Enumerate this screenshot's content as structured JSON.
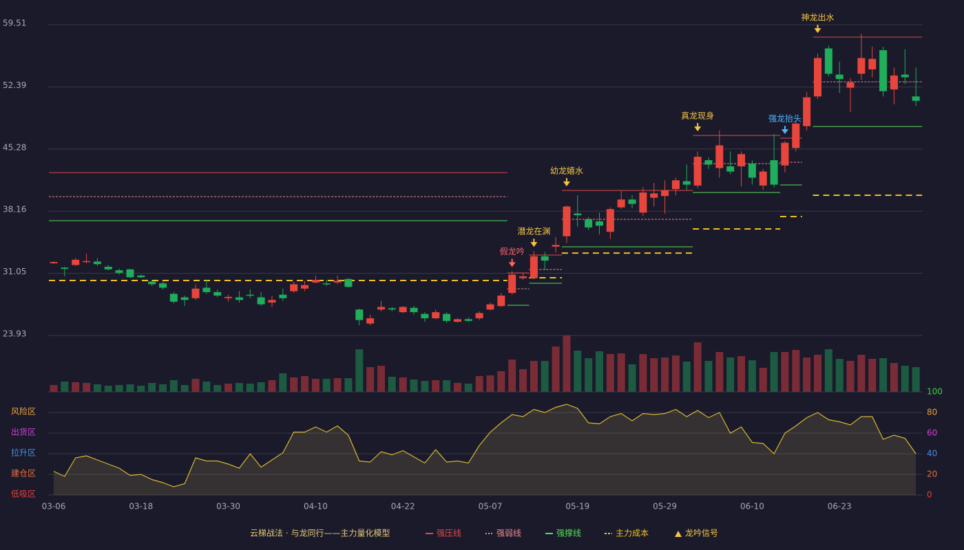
{
  "chart_data": {
    "type": "candlestick",
    "categories": [
      "03-06",
      null,
      null,
      null,
      null,
      null,
      null,
      null,
      "03-18",
      null,
      null,
      null,
      null,
      null,
      null,
      null,
      "03-30",
      null,
      null,
      null,
      null,
      null,
      null,
      null,
      "04-10",
      null,
      null,
      null,
      null,
      null,
      null,
      null,
      "04-22",
      null,
      null,
      null,
      null,
      null,
      null,
      null,
      "05-07",
      null,
      null,
      null,
      null,
      null,
      null,
      null,
      "05-19",
      null,
      null,
      null,
      null,
      null,
      null,
      null,
      "05-29",
      null,
      null,
      null,
      null,
      null,
      null,
      null,
      "06-10",
      null,
      null,
      null,
      null,
      null,
      null,
      null,
      "06-23",
      null,
      null,
      null,
      null,
      null,
      null,
      null
    ],
    "open": [
      32.2,
      31.7,
      32.0,
      32.4,
      32.4,
      31.8,
      31.4,
      31.5,
      30.8,
      30.1,
      29.9,
      28.7,
      28.3,
      28.2,
      29.4,
      28.9,
      28.2,
      28.3,
      28.6,
      28.3,
      27.7,
      28.6,
      29.0,
      29.3,
      30.0,
      29.9,
      30.0,
      30.4,
      26.9,
      25.3,
      26.9,
      27.05,
      26.6,
      27.1,
      26.4,
      25.9,
      26.4,
      25.5,
      25.8,
      25.9,
      26.9,
      27.3,
      28.8,
      30.5,
      30.5,
      33.0,
      34.1,
      35.3,
      37.9,
      37.2,
      37.0,
      35.8,
      38.6,
      39.5,
      38.0,
      39.7,
      39.9,
      40.7,
      41.6,
      41.1,
      44.0,
      43.1,
      43.3,
      43.3,
      43.6,
      41.1,
      44.0,
      43.4,
      45.4,
      47.9,
      51.3,
      56.8,
      53.8,
      52.3,
      53.9,
      54.4,
      56.6,
      52.1,
      53.8,
      51.3
    ],
    "close": [
      32.35,
      31.55,
      32.6,
      32.45,
      32.1,
      31.5,
      31.1,
      30.6,
      30.6,
      29.8,
      29.4,
      27.8,
      28.0,
      29.3,
      28.9,
      28.5,
      28.35,
      28.0,
      28.5,
      27.5,
      28.0,
      28.2,
      29.8,
      29.7,
      30.3,
      29.8,
      30.2,
      29.5,
      25.7,
      25.9,
      27.2,
      26.9,
      27.2,
      26.6,
      25.9,
      26.6,
      25.6,
      25.8,
      25.6,
      26.5,
      27.5,
      28.5,
      30.9,
      30.7,
      33.0,
      32.5,
      34.3,
      38.7,
      37.7,
      36.3,
      36.5,
      38.4,
      39.5,
      39.0,
      40.3,
      40.2,
      40.5,
      41.7,
      41.2,
      44.4,
      43.5,
      45.7,
      42.7,
      44.7,
      42.0,
      42.7,
      41.2,
      46.0,
      48.2,
      51.2,
      55.7,
      53.9,
      53.3,
      52.9,
      55.7,
      55.6,
      51.9,
      53.7,
      53.5,
      50.8
    ],
    "low": [
      32.1,
      30.7,
      31.9,
      32.2,
      31.9,
      31.4,
      30.9,
      30.5,
      30.5,
      29.6,
      29.2,
      27.6,
      27.3,
      28.0,
      28.7,
      28.3,
      27.8,
      27.7,
      28.2,
      27.3,
      27.2,
      27.9,
      28.8,
      29.0,
      29.9,
      29.6,
      29.8,
      29.4,
      25.1,
      25.1,
      26.7,
      26.7,
      26.5,
      26.3,
      25.5,
      25.8,
      25.4,
      25.4,
      25.5,
      25.7,
      26.8,
      27.2,
      28.6,
      30.3,
      30.4,
      31.4,
      33.4,
      34.5,
      36.4,
      36.0,
      35.5,
      35.0,
      38.4,
      38.5,
      37.6,
      38.7,
      37.9,
      40.0,
      40.6,
      40.8,
      43.0,
      42.0,
      42.4,
      41.0,
      41.2,
      40.6,
      40.9,
      42.6,
      45.0,
      47.4,
      51.0,
      53.6,
      51.7,
      49.5,
      53.2,
      53.5,
      51.3,
      50.4,
      52.7,
      50.2
    ],
    "high": [
      32.4,
      31.8,
      32.8,
      33.3,
      32.8,
      32.0,
      31.6,
      31.6,
      30.9,
      30.3,
      30.1,
      28.9,
      28.5,
      29.8,
      30.3,
      29.2,
      28.6,
      29.0,
      29.2,
      28.9,
      28.5,
      29.3,
      30.1,
      30.2,
      30.8,
      30.3,
      30.8,
      30.5,
      27.0,
      26.3,
      27.9,
      27.2,
      27.3,
      27.3,
      26.6,
      26.9,
      26.6,
      25.9,
      26.0,
      26.7,
      27.7,
      28.8,
      31.3,
      31.1,
      33.6,
      33.5,
      35.2,
      38.8,
      40.0,
      37.5,
      38.0,
      38.6,
      40.5,
      40.0,
      40.9,
      41.4,
      41.7,
      42.0,
      43.5,
      45.0,
      44.3,
      47.4,
      45.0,
      45.0,
      44.0,
      43.0,
      47.0,
      46.2,
      48.5,
      51.8,
      56.2,
      57.1,
      55.3,
      53.4,
      58.5,
      57.0,
      57.0,
      54.6,
      56.7,
      54.6
    ],
    "volume": [
      10,
      15,
      14,
      13,
      11,
      9,
      10,
      11,
      9,
      13,
      11,
      17,
      10,
      19,
      15,
      10,
      12,
      13,
      12,
      14,
      17,
      27,
      21,
      23,
      19,
      19,
      20,
      20,
      62,
      36,
      38,
      22,
      21,
      18,
      16,
      17,
      17,
      13,
      12,
      23,
      24,
      30,
      47,
      33,
      45,
      45,
      66,
      82,
      60,
      49,
      59,
      55,
      56,
      40,
      55,
      49,
      50,
      53,
      44,
      72,
      45,
      58,
      50,
      52,
      46,
      35,
      58,
      58,
      61,
      50,
      54,
      62,
      48,
      45,
      54,
      48,
      49,
      42,
      38,
      36
    ],
    "up_color": "#e8463c",
    "down_color": "#1fae5b",
    "volume_up_color": "#7a2c36",
    "volume_down_color": "#1d5a42",
    "ylim": [
      23.93,
      59.51
    ],
    "yticks": [
      23.93,
      31.05,
      38.16,
      45.28,
      52.39,
      59.51
    ],
    "grid": true,
    "levels": [
      {
        "name": "强压线",
        "color": "#e04848",
        "style": "solid",
        "segments": [
          {
            "start": 0,
            "end": 41,
            "value": 42.58
          },
          {
            "start": 42,
            "end": 43,
            "value": 31.09
          },
          {
            "start": 44,
            "end": 46,
            "value": 33.14
          },
          {
            "start": 47,
            "end": 58,
            "value": 40.54
          },
          {
            "start": 59,
            "end": 66,
            "value": 46.84
          },
          {
            "start": 67,
            "end": 68,
            "value": 46.52
          },
          {
            "start": 70,
            "end": 79,
            "value": 58.09
          }
        ]
      },
      {
        "name": "强弱线",
        "color": "#f08a8a",
        "style": "dotted",
        "segments": [
          {
            "start": 0,
            "end": 41,
            "value": 39.83
          },
          {
            "start": 42,
            "end": 43,
            "value": 29.28
          },
          {
            "start": 44,
            "end": 46,
            "value": 31.49
          },
          {
            "start": 47,
            "end": 58,
            "value": 37.23
          },
          {
            "start": 59,
            "end": 66,
            "value": 43.61
          },
          {
            "start": 67,
            "end": 68,
            "value": 43.77
          },
          {
            "start": 70,
            "end": 79,
            "value": 52.98
          }
        ]
      },
      {
        "name": "强撑线",
        "color": "#52e052",
        "style": "solid",
        "segments": [
          {
            "start": 0,
            "end": 41,
            "value": 37.08
          },
          {
            "start": 42,
            "end": 43,
            "value": 27.39
          },
          {
            "start": 44,
            "end": 46,
            "value": 29.91
          },
          {
            "start": 47,
            "end": 58,
            "value": 34.08
          },
          {
            "start": 59,
            "end": 66,
            "value": 40.3
          },
          {
            "start": 67,
            "end": 68,
            "value": 41.17
          },
          {
            "start": 70,
            "end": 79,
            "value": 47.86
          }
        ]
      },
      {
        "name": "主力成本",
        "color": "#f0c020",
        "style": "dashed",
        "segments": [
          {
            "start": 0,
            "end": 41,
            "value": 30.23
          },
          {
            "start": 44,
            "end": 46,
            "value": 30.54
          },
          {
            "start": 47,
            "end": 58,
            "value": 33.37
          },
          {
            "start": 59,
            "end": 66,
            "value": 36.13
          },
          {
            "start": 67,
            "end": 68,
            "value": 37.55
          },
          {
            "start": 70,
            "end": 79,
            "value": 39.99
          }
        ]
      }
    ],
    "signals": [
      {
        "label": "假龙吟",
        "index": 42,
        "color": "#ff6464"
      },
      {
        "label": "潜龙在渊",
        "index": 44,
        "color": "#f5c542"
      },
      {
        "label": "幼龙嬉水",
        "index": 47,
        "color": "#f5c542"
      },
      {
        "label": "真龙现身",
        "index": 59,
        "color": "#f5c542"
      },
      {
        "label": "强龙抬头",
        "index": 67,
        "color": "#4fb4ff"
      },
      {
        "label": "神龙出水",
        "index": 70,
        "color": "#f5c542"
      }
    ],
    "signal_legend": {
      "label": "龙吟信号",
      "color": "#f5c542"
    },
    "legend_title": "云梯战法 · 与龙同行——主力量化模型",
    "oscillator": {
      "values": [
        23,
        18,
        36,
        38,
        34,
        30,
        26,
        19,
        20,
        15,
        12,
        8,
        11,
        36,
        33,
        33,
        30,
        26,
        40,
        27,
        34,
        41,
        61,
        61,
        66,
        61,
        67,
        58,
        33,
        32,
        42,
        39,
        43,
        37,
        31,
        44,
        32,
        33,
        31,
        48,
        61,
        70,
        78,
        76,
        83,
        80,
        85,
        88,
        84,
        70,
        69,
        76,
        79,
        72,
        79,
        78,
        79,
        83,
        76,
        82,
        75,
        80,
        60,
        66,
        51,
        50,
        40,
        60,
        67,
        75,
        80,
        73,
        71,
        68,
        76,
        76,
        54,
        58,
        55,
        40
      ],
      "color": "#d8b830",
      "ylim": [
        0,
        100
      ],
      "yticks": [
        {
          "value": 0,
          "color": "#e04040"
        },
        {
          "value": 20,
          "color": "#e8703a"
        },
        {
          "value": 40,
          "color": "#4a8ee0"
        },
        {
          "value": 60,
          "color": "#d040d0"
        },
        {
          "value": 80,
          "color": "#e8a040"
        },
        {
          "value": 100,
          "color": "#40d040"
        }
      ],
      "zones": [
        {
          "label": "风险区",
          "value": 80,
          "color": "#e8a040"
        },
        {
          "label": "出货区",
          "value": 60,
          "color": "#d040d0"
        },
        {
          "label": "拉升区",
          "value": 40,
          "color": "#4a8ee0"
        },
        {
          "label": "建仓区",
          "value": 20,
          "color": "#e8703a"
        },
        {
          "label": "低吸区",
          "value": 0,
          "color": "#e04040"
        }
      ]
    }
  }
}
